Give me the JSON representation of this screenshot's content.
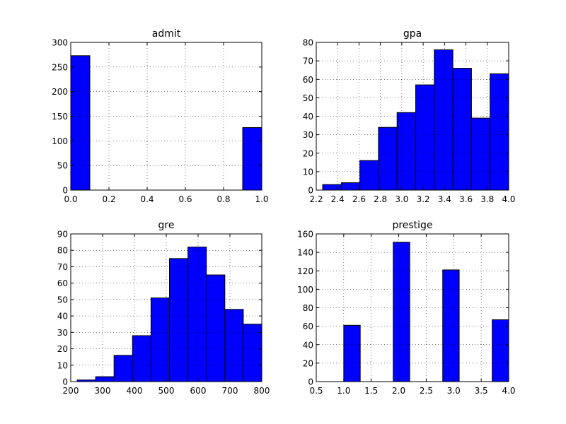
{
  "chart_data": [
    {
      "type": "bar",
      "title": "admit",
      "xlim": [
        0.0,
        1.0
      ],
      "ylim": [
        0,
        300
      ],
      "xticks": [
        "0.0",
        "0.2",
        "0.4",
        "0.6",
        "0.8",
        "1.0"
      ],
      "xtick_values": [
        0.0,
        0.2,
        0.4,
        0.6,
        0.8,
        1.0
      ],
      "yticks": [
        "0",
        "50",
        "100",
        "150",
        "200",
        "250",
        "300"
      ],
      "ytick_values": [
        0,
        50,
        100,
        150,
        200,
        250,
        300
      ],
      "bins": [
        [
          0.0,
          0.1
        ],
        [
          0.1,
          0.2
        ],
        [
          0.2,
          0.3
        ],
        [
          0.3,
          0.4
        ],
        [
          0.4,
          0.5
        ],
        [
          0.5,
          0.6
        ],
        [
          0.6,
          0.7
        ],
        [
          0.7,
          0.8
        ],
        [
          0.8,
          0.9
        ],
        [
          0.9,
          1.0
        ]
      ],
      "values": [
        273,
        0,
        0,
        0,
        0,
        0,
        0,
        0,
        0,
        127
      ],
      "grid": true,
      "bar_color": "#0000ff"
    },
    {
      "type": "bar",
      "title": "gpa",
      "xlim": [
        2.2,
        4.0
      ],
      "ylim": [
        0,
        80
      ],
      "xticks": [
        "2.2",
        "2.4",
        "2.6",
        "2.8",
        "3.0",
        "3.2",
        "3.4",
        "3.6",
        "3.8",
        "4.0"
      ],
      "xtick_values": [
        2.2,
        2.4,
        2.6,
        2.8,
        3.0,
        3.2,
        3.4,
        3.6,
        3.8,
        4.0
      ],
      "yticks": [
        "0",
        "10",
        "20",
        "30",
        "40",
        "50",
        "60",
        "70",
        "80"
      ],
      "ytick_values": [
        0,
        10,
        20,
        30,
        40,
        50,
        60,
        70,
        80
      ],
      "bins": [
        [
          2.26,
          2.434
        ],
        [
          2.434,
          2.608
        ],
        [
          2.608,
          2.782
        ],
        [
          2.782,
          2.956
        ],
        [
          2.956,
          3.13
        ],
        [
          3.13,
          3.304
        ],
        [
          3.304,
          3.478
        ],
        [
          3.478,
          3.652
        ],
        [
          3.652,
          3.826
        ],
        [
          3.826,
          4.0
        ]
      ],
      "values": [
        3,
        4,
        16,
        34,
        42,
        57,
        76,
        66,
        39,
        63
      ],
      "grid": true,
      "bar_color": "#0000ff"
    },
    {
      "type": "bar",
      "title": "gre",
      "xlim": [
        200,
        800
      ],
      "ylim": [
        0,
        90
      ],
      "xticks": [
        "200",
        "300",
        "400",
        "500",
        "600",
        "700",
        "800"
      ],
      "xtick_values": [
        200,
        300,
        400,
        500,
        600,
        700,
        800
      ],
      "yticks": [
        "0",
        "10",
        "20",
        "30",
        "40",
        "50",
        "60",
        "70",
        "80",
        "90"
      ],
      "ytick_values": [
        0,
        10,
        20,
        30,
        40,
        50,
        60,
        70,
        80,
        90
      ],
      "bins": [
        [
          220,
          278
        ],
        [
          278,
          336
        ],
        [
          336,
          394
        ],
        [
          394,
          452
        ],
        [
          452,
          510
        ],
        [
          510,
          568
        ],
        [
          568,
          626
        ],
        [
          626,
          684
        ],
        [
          684,
          742
        ],
        [
          742,
          800
        ]
      ],
      "values": [
        1,
        3,
        16,
        28,
        51,
        75,
        82,
        65,
        44,
        35
      ],
      "grid": true,
      "bar_color": "#0000ff"
    },
    {
      "type": "bar",
      "title": "prestige",
      "xlim": [
        0.5,
        4.0
      ],
      "ylim": [
        0,
        160
      ],
      "xticks": [
        "0.5",
        "1.0",
        "1.5",
        "2.0",
        "2.5",
        "3.0",
        "3.5",
        "4.0"
      ],
      "xtick_values": [
        0.5,
        1.0,
        1.5,
        2.0,
        2.5,
        3.0,
        3.5,
        4.0
      ],
      "yticks": [
        "0",
        "20",
        "40",
        "60",
        "80",
        "100",
        "120",
        "140",
        "160"
      ],
      "ytick_values": [
        0,
        20,
        40,
        60,
        80,
        100,
        120,
        140,
        160
      ],
      "bins": [
        [
          1.0,
          1.3
        ],
        [
          1.3,
          1.6
        ],
        [
          1.6,
          1.9
        ],
        [
          1.9,
          2.2
        ],
        [
          2.2,
          2.5
        ],
        [
          2.5,
          2.8
        ],
        [
          2.8,
          3.1
        ],
        [
          3.1,
          3.4
        ],
        [
          3.4,
          3.7
        ],
        [
          3.7,
          4.0
        ]
      ],
      "values": [
        61,
        0,
        0,
        151,
        0,
        0,
        121,
        0,
        0,
        67
      ],
      "grid": true,
      "bar_color": "#0000ff"
    }
  ]
}
